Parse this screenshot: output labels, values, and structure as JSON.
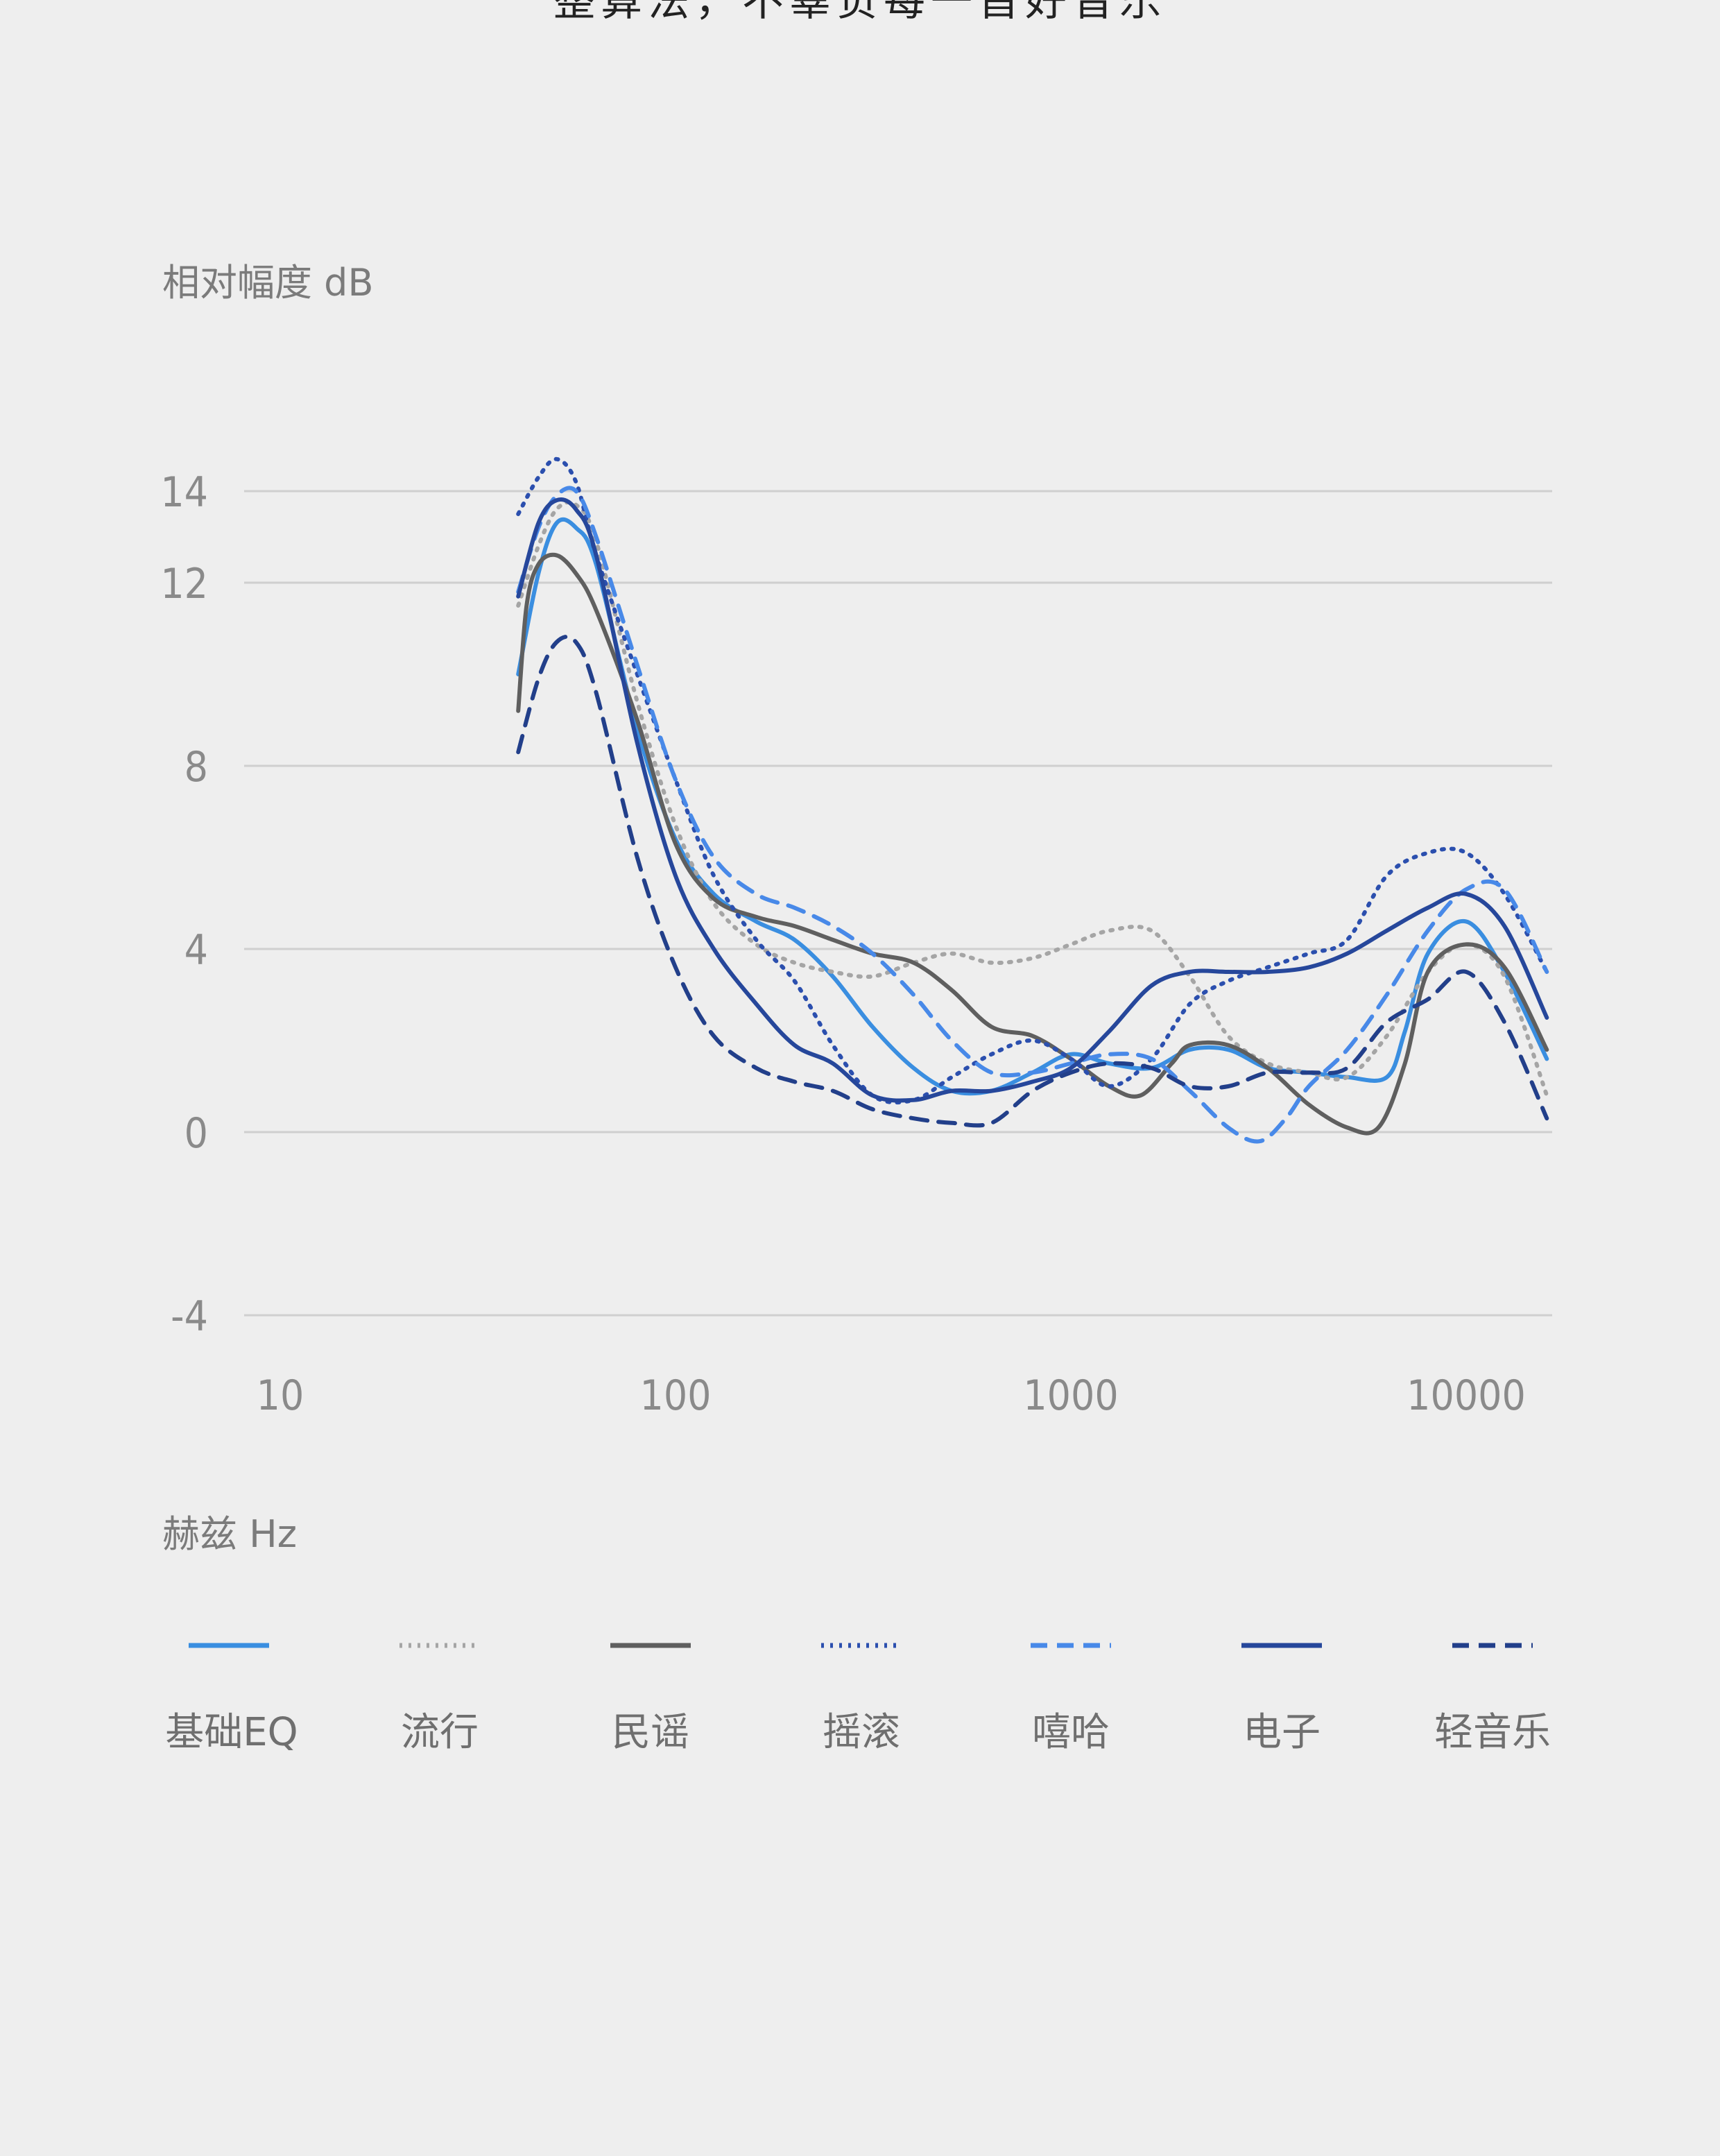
{
  "page": {
    "headline": "整算法，不辜负每一首好音乐"
  },
  "chart_data": {
    "type": "line",
    "ylabel": "相对幅度 dB",
    "xlabel": "赫兹 Hz",
    "x_scale": "log",
    "xlim": [
      7,
      16000
    ],
    "ylim": [
      -4,
      14
    ],
    "y_ticks": [
      14,
      12,
      8,
      4,
      0,
      -4
    ],
    "x_ticks": [
      10,
      100,
      1000,
      10000
    ],
    "grid": true,
    "legend_position": "bottom",
    "series": [
      {
        "name": "基础EQ",
        "color": "#3a8ee0",
        "style": "solid",
        "points": [
          [
            40,
            10
          ],
          [
            45,
            12.2
          ],
          [
            50,
            13.3
          ],
          [
            56,
            13.2
          ],
          [
            63,
            12.4
          ],
          [
            80,
            8.8
          ],
          [
            100,
            6.4
          ],
          [
            125,
            5.2
          ],
          [
            160,
            4.6
          ],
          [
            200,
            4.2
          ],
          [
            250,
            3.4
          ],
          [
            315,
            2.3
          ],
          [
            400,
            1.4
          ],
          [
            500,
            0.9
          ],
          [
            630,
            0.9
          ],
          [
            800,
            1.3
          ],
          [
            1000,
            1.7
          ],
          [
            1250,
            1.5
          ],
          [
            1600,
            1.4
          ],
          [
            2000,
            1.8
          ],
          [
            2500,
            1.8
          ],
          [
            3150,
            1.4
          ],
          [
            4000,
            1.3
          ],
          [
            5000,
            1.2
          ],
          [
            6300,
            1.2
          ],
          [
            7000,
            2.2
          ],
          [
            8000,
            3.9
          ],
          [
            10000,
            4.6
          ],
          [
            12500,
            3.5
          ],
          [
            16000,
            1.6
          ]
        ]
      },
      {
        "name": "流行",
        "color": "#a5a5a5",
        "style": "dotted",
        "points": [
          [
            40,
            11.5
          ],
          [
            45,
            12.8
          ],
          [
            50,
            13.6
          ],
          [
            56,
            13.7
          ],
          [
            63,
            12.9
          ],
          [
            80,
            9.4
          ],
          [
            100,
            6.7
          ],
          [
            125,
            5.0
          ],
          [
            160,
            4.1
          ],
          [
            200,
            3.7
          ],
          [
            250,
            3.5
          ],
          [
            315,
            3.4
          ],
          [
            400,
            3.7
          ],
          [
            500,
            3.9
          ],
          [
            630,
            3.7
          ],
          [
            800,
            3.8
          ],
          [
            1000,
            4.1
          ],
          [
            1250,
            4.4
          ],
          [
            1600,
            4.4
          ],
          [
            2000,
            3.4
          ],
          [
            2500,
            2.1
          ],
          [
            3150,
            1.5
          ],
          [
            4000,
            1.3
          ],
          [
            5000,
            1.2
          ],
          [
            6300,
            2.1
          ],
          [
            8000,
            3.5
          ],
          [
            10000,
            4.1
          ],
          [
            12500,
            3.4
          ],
          [
            16000,
            0.8
          ]
        ]
      },
      {
        "name": "民谣",
        "color": "#5f5f5f",
        "style": "solid",
        "points": [
          [
            40,
            9.2
          ],
          [
            42,
            11.5
          ],
          [
            45,
            12.4
          ],
          [
            50,
            12.6
          ],
          [
            56,
            12.2
          ],
          [
            63,
            11.4
          ],
          [
            80,
            9.0
          ],
          [
            100,
            6.3
          ],
          [
            125,
            5.1
          ],
          [
            160,
            4.7
          ],
          [
            200,
            4.5
          ],
          [
            250,
            4.2
          ],
          [
            315,
            3.9
          ],
          [
            400,
            3.7
          ],
          [
            500,
            3.1
          ],
          [
            630,
            2.3
          ],
          [
            800,
            2.1
          ],
          [
            1000,
            1.6
          ],
          [
            1250,
            1.0
          ],
          [
            1500,
            0.8
          ],
          [
            1800,
            1.5
          ],
          [
            2000,
            1.9
          ],
          [
            2500,
            1.9
          ],
          [
            3150,
            1.4
          ],
          [
            4000,
            0.6
          ],
          [
            5000,
            0.1
          ],
          [
            6000,
            0.1
          ],
          [
            7000,
            1.5
          ],
          [
            8000,
            3.5
          ],
          [
            10000,
            4.1
          ],
          [
            12500,
            3.6
          ],
          [
            16000,
            1.8
          ]
        ]
      },
      {
        "name": "摇滚",
        "color": "#2b4fae",
        "style": "dotted",
        "points": [
          [
            40,
            13.5
          ],
          [
            45,
            14.3
          ],
          [
            50,
            14.7
          ],
          [
            56,
            14.2
          ],
          [
            63,
            12.6
          ],
          [
            80,
            10.0
          ],
          [
            100,
            7.7
          ],
          [
            125,
            5.6
          ],
          [
            160,
            4.2
          ],
          [
            200,
            3.3
          ],
          [
            250,
            1.9
          ],
          [
            315,
            0.8
          ],
          [
            400,
            0.7
          ],
          [
            500,
            1.2
          ],
          [
            630,
            1.7
          ],
          [
            800,
            2.0
          ],
          [
            1000,
            1.6
          ],
          [
            1250,
            1.0
          ],
          [
            1600,
            1.6
          ],
          [
            2000,
            2.8
          ],
          [
            2500,
            3.3
          ],
          [
            3150,
            3.6
          ],
          [
            4000,
            3.9
          ],
          [
            5000,
            4.2
          ],
          [
            6300,
            5.6
          ],
          [
            8000,
            6.1
          ],
          [
            10000,
            6.1
          ],
          [
            12500,
            5.2
          ],
          [
            16000,
            3.5
          ]
        ]
      },
      {
        "name": "嘻哈",
        "color": "#4889e8",
        "style": "dashed",
        "points": [
          [
            40,
            11.8
          ],
          [
            45,
            13.2
          ],
          [
            50,
            13.9
          ],
          [
            56,
            14.0
          ],
          [
            63,
            13.0
          ],
          [
            80,
            10.2
          ],
          [
            100,
            7.7
          ],
          [
            125,
            6.0
          ],
          [
            160,
            5.2
          ],
          [
            200,
            4.9
          ],
          [
            250,
            4.5
          ],
          [
            315,
            3.9
          ],
          [
            400,
            3.0
          ],
          [
            500,
            2.0
          ],
          [
            630,
            1.3
          ],
          [
            800,
            1.3
          ],
          [
            1000,
            1.5
          ],
          [
            1250,
            1.7
          ],
          [
            1600,
            1.6
          ],
          [
            2000,
            0.9
          ],
          [
            2500,
            0.1
          ],
          [
            3000,
            -0.2
          ],
          [
            3500,
            0.3
          ],
          [
            4000,
            1.0
          ],
          [
            5000,
            1.8
          ],
          [
            6300,
            3.0
          ],
          [
            8000,
            4.4
          ],
          [
            10000,
            5.3
          ],
          [
            12500,
            5.3
          ],
          [
            16000,
            3.5
          ]
        ]
      },
      {
        "name": "电子",
        "color": "#26479b",
        "style": "solid",
        "points": [
          [
            40,
            11.7
          ],
          [
            45,
            13.3
          ],
          [
            50,
            13.8
          ],
          [
            56,
            13.6
          ],
          [
            63,
            12.6
          ],
          [
            80,
            8.5
          ],
          [
            100,
            5.6
          ],
          [
            125,
            4.0
          ],
          [
            160,
            2.8
          ],
          [
            200,
            1.9
          ],
          [
            250,
            1.5
          ],
          [
            315,
            0.8
          ],
          [
            400,
            0.7
          ],
          [
            500,
            0.9
          ],
          [
            630,
            0.9
          ],
          [
            800,
            1.1
          ],
          [
            1000,
            1.4
          ],
          [
            1250,
            2.2
          ],
          [
            1600,
            3.2
          ],
          [
            2000,
            3.5
          ],
          [
            2500,
            3.5
          ],
          [
            3150,
            3.5
          ],
          [
            4000,
            3.6
          ],
          [
            5000,
            3.9
          ],
          [
            6300,
            4.4
          ],
          [
            8000,
            4.9
          ],
          [
            10000,
            5.2
          ],
          [
            12500,
            4.5
          ],
          [
            16000,
            2.5
          ]
        ]
      },
      {
        "name": "轻音乐",
        "color": "#223f8a",
        "style": "dashed",
        "points": [
          [
            40,
            8.3
          ],
          [
            45,
            9.9
          ],
          [
            50,
            10.7
          ],
          [
            56,
            10.7
          ],
          [
            63,
            9.6
          ],
          [
            80,
            6.0
          ],
          [
            100,
            3.6
          ],
          [
            125,
            2.1
          ],
          [
            160,
            1.4
          ],
          [
            200,
            1.1
          ],
          [
            250,
            0.9
          ],
          [
            315,
            0.5
          ],
          [
            400,
            0.3
          ],
          [
            500,
            0.2
          ],
          [
            630,
            0.2
          ],
          [
            800,
            0.9
          ],
          [
            1000,
            1.3
          ],
          [
            1250,
            1.5
          ],
          [
            1600,
            1.4
          ],
          [
            2000,
            1.0
          ],
          [
            2500,
            1.0
          ],
          [
            3150,
            1.3
          ],
          [
            4000,
            1.3
          ],
          [
            5000,
            1.4
          ],
          [
            6300,
            2.4
          ],
          [
            8000,
            2.9
          ],
          [
            10000,
            3.5
          ],
          [
            12500,
            2.4
          ],
          [
            16000,
            0.3
          ]
        ]
      }
    ]
  }
}
